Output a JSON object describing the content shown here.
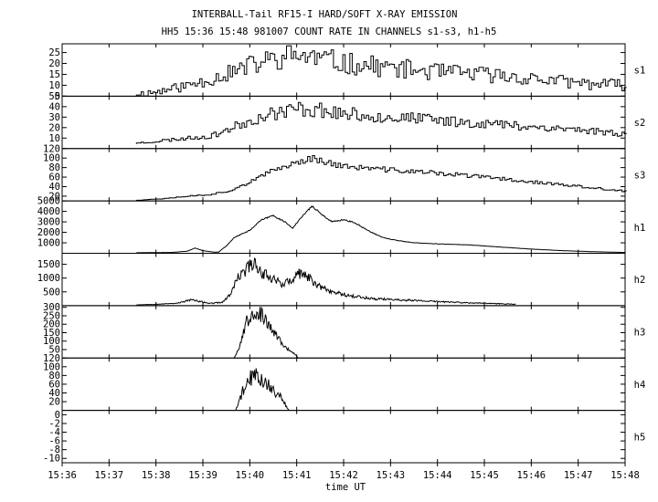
{
  "chart_data": {
    "type": "line",
    "title": "INTERBALL-Tail RF15-I HARD/SOFT X-RAY EMISSION",
    "subtitle": "HH5 15:36 15:48 981007  COUNT RATE IN CHANNELS s1-s3, h1-h5",
    "xlabel": "time UT",
    "xlim": [
      0,
      720
    ],
    "x_tick_labels": [
      "15:36",
      "15:37",
      "15:38",
      "15:39",
      "15:40",
      "15:41",
      "15:42",
      "15:43",
      "15:44",
      "15:45",
      "15:46",
      "15:47",
      "15:48"
    ],
    "x_tick_values": [
      0,
      60,
      120,
      180,
      240,
      300,
      360,
      420,
      480,
      540,
      600,
      660,
      720
    ],
    "panels": [
      {
        "name": "s1",
        "ylim": [
          5,
          29
        ],
        "yticks": [
          5,
          10,
          15,
          20,
          25
        ],
        "tick_labels": [
          "5",
          "10",
          "15",
          "20",
          "25"
        ],
        "style": "step",
        "noise": 0.25,
        "seed": 11,
        "points": [
          [
            95,
            6
          ],
          [
            120,
            7
          ],
          [
            160,
            10
          ],
          [
            200,
            14
          ],
          [
            240,
            19
          ],
          [
            270,
            22
          ],
          [
            300,
            24
          ],
          [
            330,
            22
          ],
          [
            360,
            20
          ],
          [
            420,
            18
          ],
          [
            480,
            16
          ],
          [
            540,
            15
          ],
          [
            600,
            13
          ],
          [
            660,
            11
          ],
          [
            720,
            10
          ]
        ]
      },
      {
        "name": "s2",
        "ylim": [
          0,
          50
        ],
        "yticks": [
          10,
          20,
          30,
          40,
          50
        ],
        "tick_labels": [
          "10",
          "20",
          "30",
          "40",
          "50"
        ],
        "style": "step",
        "noise": 0.2,
        "seed": 23,
        "points": [
          [
            95,
            5
          ],
          [
            120,
            7
          ],
          [
            160,
            10
          ],
          [
            190,
            12
          ],
          [
            210,
            18
          ],
          [
            240,
            27
          ],
          [
            270,
            34
          ],
          [
            300,
            38
          ],
          [
            330,
            37
          ],
          [
            360,
            33
          ],
          [
            420,
            30
          ],
          [
            480,
            27
          ],
          [
            540,
            24
          ],
          [
            600,
            21
          ],
          [
            660,
            18
          ],
          [
            720,
            14
          ]
        ]
      },
      {
        "name": "s3",
        "ylim": [
          10,
          120
        ],
        "yticks": [
          20,
          40,
          60,
          80,
          100,
          120
        ],
        "tick_labels": [
          "20",
          "40",
          "60",
          "80",
          "100",
          "120"
        ],
        "style": "step",
        "noise": 0.07,
        "seed": 37,
        "points": [
          [
            95,
            12
          ],
          [
            120,
            14
          ],
          [
            160,
            20
          ],
          [
            190,
            24
          ],
          [
            210,
            30
          ],
          [
            240,
            50
          ],
          [
            270,
            75
          ],
          [
            300,
            92
          ],
          [
            320,
            100
          ],
          [
            340,
            90
          ],
          [
            360,
            82
          ],
          [
            420,
            75
          ],
          [
            480,
            68
          ],
          [
            540,
            60
          ],
          [
            600,
            50
          ],
          [
            660,
            40
          ],
          [
            720,
            30
          ]
        ]
      },
      {
        "name": "h1",
        "ylim": [
          0,
          5000
        ],
        "yticks": [
          1000,
          2000,
          3000,
          4000,
          5000
        ],
        "tick_labels": [
          "1000",
          "2000",
          "3000",
          "4000",
          "5000"
        ],
        "style": "line",
        "noise": 0.02,
        "seed": 41,
        "points": [
          [
            95,
            50
          ],
          [
            140,
            80
          ],
          [
            160,
            200
          ],
          [
            170,
            500
          ],
          [
            180,
            250
          ],
          [
            195,
            100
          ],
          [
            200,
            120
          ],
          [
            210,
            700
          ],
          [
            220,
            1500
          ],
          [
            240,
            2200
          ],
          [
            255,
            3200
          ],
          [
            270,
            3600
          ],
          [
            285,
            3000
          ],
          [
            295,
            2400
          ],
          [
            310,
            3800
          ],
          [
            320,
            4500
          ],
          [
            330,
            3800
          ],
          [
            345,
            3000
          ],
          [
            360,
            3200
          ],
          [
            375,
            2900
          ],
          [
            390,
            2200
          ],
          [
            410,
            1500
          ],
          [
            430,
            1200
          ],
          [
            450,
            1000
          ],
          [
            480,
            900
          ],
          [
            520,
            800
          ],
          [
            560,
            600
          ],
          [
            600,
            400
          ],
          [
            640,
            250
          ],
          [
            680,
            150
          ],
          [
            720,
            80
          ]
        ]
      },
      {
        "name": "h2",
        "ylim": [
          0,
          1900
        ],
        "yticks": [
          500,
          1000,
          1500
        ],
        "tick_labels": [
          "500",
          "1000",
          "1500"
        ],
        "style": "line",
        "noise": 0.18,
        "seed": 53,
        "points": [
          [
            95,
            30
          ],
          [
            130,
            60
          ],
          [
            150,
            100
          ],
          [
            165,
            220
          ],
          [
            175,
            150
          ],
          [
            190,
            80
          ],
          [
            205,
            120
          ],
          [
            215,
            400
          ],
          [
            225,
            1000
          ],
          [
            235,
            1300
          ],
          [
            245,
            1600
          ],
          [
            255,
            1200
          ],
          [
            270,
            1000
          ],
          [
            280,
            800
          ],
          [
            295,
            900
          ],
          [
            305,
            1200
          ],
          [
            315,
            1000
          ],
          [
            330,
            700
          ],
          [
            345,
            500
          ],
          [
            360,
            420
          ],
          [
            375,
            330
          ],
          [
            400,
            250
          ],
          [
            440,
            200
          ],
          [
            480,
            150
          ],
          [
            520,
            100
          ],
          [
            560,
            70
          ],
          [
            580,
            50
          ]
        ]
      },
      {
        "name": "h3",
        "ylim": [
          0,
          310
        ],
        "yticks": [
          50,
          100,
          150,
          200,
          250,
          300
        ],
        "tick_labels": [
          "50",
          "100",
          "150",
          "200",
          "250",
          "300"
        ],
        "style": "line",
        "noise": 0.18,
        "seed": 67,
        "points": [
          [
            220,
            0
          ],
          [
            228,
            80
          ],
          [
            236,
            220
          ],
          [
            246,
            280
          ],
          [
            256,
            250
          ],
          [
            266,
            180
          ],
          [
            276,
            120
          ],
          [
            286,
            60
          ],
          [
            296,
            30
          ],
          [
            302,
            0
          ]
        ]
      },
      {
        "name": "h4",
        "ylim": [
          0,
          120
        ],
        "yticks": [
          20,
          40,
          60,
          80,
          100,
          120
        ],
        "tick_labels": [
          "20",
          "40",
          "60",
          "80",
          "100",
          "120"
        ],
        "style": "line",
        "noise": 0.3,
        "seed": 79,
        "points": [
          [
            222,
            0
          ],
          [
            228,
            30
          ],
          [
            235,
            60
          ],
          [
            242,
            75
          ],
          [
            250,
            80
          ],
          [
            258,
            70
          ],
          [
            266,
            55
          ],
          [
            274,
            40
          ],
          [
            282,
            25
          ],
          [
            290,
            0
          ]
        ]
      },
      {
        "name": "h5",
        "ylim": [
          -11,
          1
        ],
        "yticks": [
          -10,
          -8,
          -6,
          -4,
          -2,
          0
        ],
        "tick_labels": [
          "-10",
          "-8",
          "-6",
          "-4",
          "-2",
          "0"
        ],
        "style": "line",
        "noise": 0,
        "seed": 0,
        "points": []
      }
    ]
  }
}
